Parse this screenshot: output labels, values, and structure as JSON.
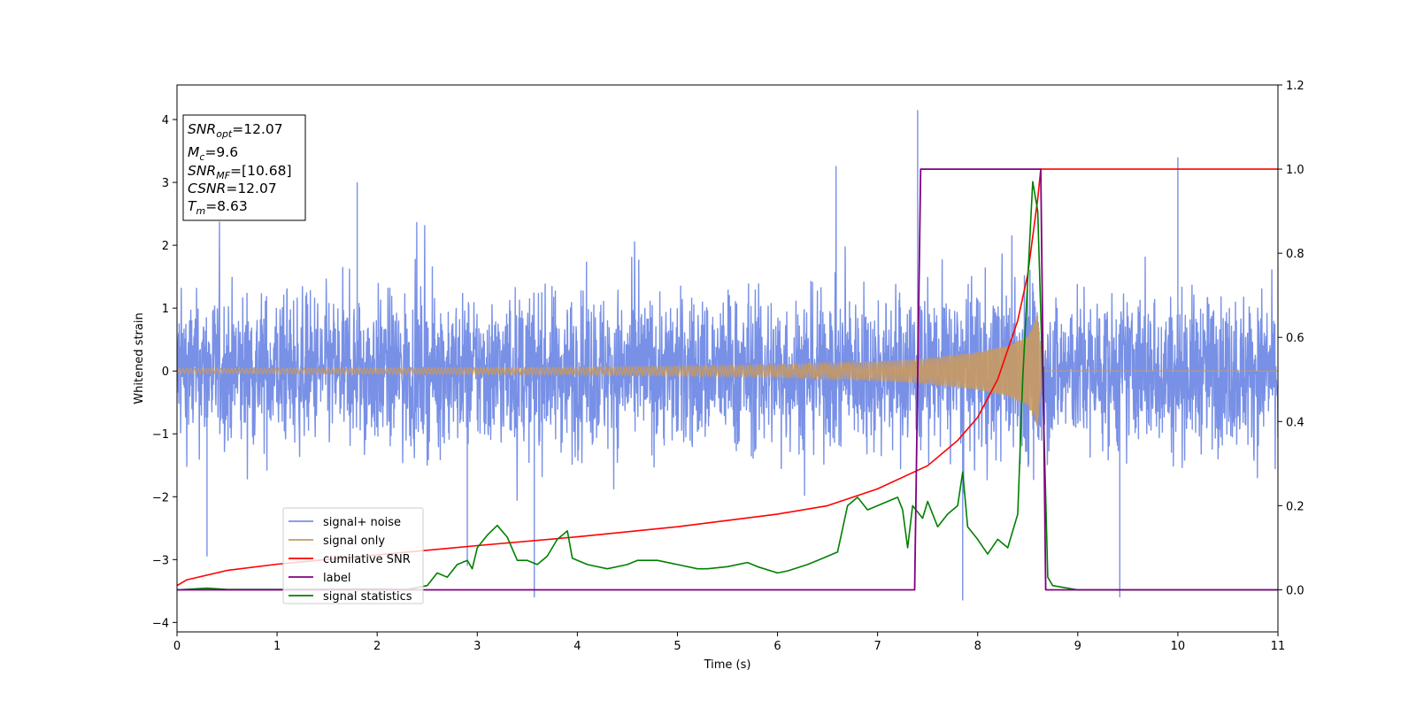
{
  "chart_data": {
    "type": "line",
    "xlabel": "Time (s)",
    "ylabel": "Whitened strain",
    "xlim": [
      0,
      11
    ],
    "ylim_left": [
      -4.15,
      4.55
    ],
    "ylim_right": [
      -0.1,
      1.2
    ],
    "x_ticks": [
      "0",
      "1",
      "2",
      "3",
      "4",
      "5",
      "6",
      "7",
      "8",
      "9",
      "10",
      "11"
    ],
    "y_left_ticks": [
      "−4",
      "−3",
      "−2",
      "−1",
      "0",
      "1",
      "2",
      "3",
      "4"
    ],
    "y_right_ticks": [
      "0.0",
      "0.2",
      "0.4",
      "0.6",
      "0.8",
      "1.0",
      "1.2"
    ],
    "colors": {
      "signal_noise": "#7890e6",
      "signal_only": "#c99a61",
      "cumulative_snr": "#ff0000",
      "label": "#800080",
      "signal_statistics": "#008000"
    },
    "annotation": {
      "snr_opt": "=12.07",
      "mc": "=9.6",
      "snr_mf": "=[10.68]",
      "csnr": "=12.07",
      "tm": "=8.63"
    },
    "series": [
      {
        "name": "signal+ noise",
        "axis": "left",
        "description": "noisy whitened strain, approx ±2.5 with spikes",
        "spikes": [
          [
            7.4,
            4.15
          ],
          [
            10.0,
            3.4
          ],
          [
            1.8,
            3.0
          ],
          [
            7.85,
            -3.65
          ],
          [
            3.57,
            -3.6
          ],
          [
            9.42,
            -3.6
          ],
          [
            2.9,
            -3.1
          ],
          [
            0.3,
            -2.95
          ]
        ]
      },
      {
        "name": "signal only",
        "axis": "left",
        "description": "chirp waveform growing toward merger at ~8.63 s, zero after",
        "envelope": [
          [
            0.0,
            0.04
          ],
          [
            2.0,
            0.05
          ],
          [
            4.0,
            0.06
          ],
          [
            6.0,
            0.1
          ],
          [
            7.0,
            0.15
          ],
          [
            7.5,
            0.2
          ],
          [
            8.0,
            0.3
          ],
          [
            8.3,
            0.4
          ],
          [
            8.5,
            0.55
          ],
          [
            8.6,
            0.9
          ],
          [
            8.65,
            0.0
          ],
          [
            11.0,
            0.0
          ]
        ]
      },
      {
        "name": "cumilative SNR",
        "axis": "right",
        "points": [
          [
            0.0,
            0.01
          ],
          [
            0.1,
            0.024
          ],
          [
            0.5,
            0.046
          ],
          [
            1.0,
            0.061
          ],
          [
            2.0,
            0.083
          ],
          [
            3.0,
            0.105
          ],
          [
            4.0,
            0.126
          ],
          [
            5.0,
            0.15
          ],
          [
            6.0,
            0.18
          ],
          [
            6.5,
            0.2
          ],
          [
            7.0,
            0.24
          ],
          [
            7.5,
            0.295
          ],
          [
            7.8,
            0.355
          ],
          [
            8.0,
            0.41
          ],
          [
            8.2,
            0.5
          ],
          [
            8.4,
            0.64
          ],
          [
            8.5,
            0.75
          ],
          [
            8.6,
            0.93
          ],
          [
            8.63,
            1.0
          ],
          [
            11.0,
            1.0
          ]
        ]
      },
      {
        "name": "label",
        "axis": "right",
        "points": [
          [
            0.0,
            0.0
          ],
          [
            7.37,
            0.0
          ],
          [
            7.43,
            1.0
          ],
          [
            8.63,
            1.0
          ],
          [
            8.68,
            0.0
          ],
          [
            11.0,
            0.0
          ]
        ]
      },
      {
        "name": "signal statistics",
        "axis": "right",
        "points": [
          [
            0.0,
            0.0
          ],
          [
            0.3,
            0.004
          ],
          [
            0.5,
            0.001
          ],
          [
            1.0,
            0.001
          ],
          [
            2.0,
            0.002
          ],
          [
            2.3,
            0.001
          ],
          [
            2.5,
            0.01
          ],
          [
            2.6,
            0.04
          ],
          [
            2.7,
            0.03
          ],
          [
            2.8,
            0.06
          ],
          [
            2.9,
            0.07
          ],
          [
            2.95,
            0.05
          ],
          [
            3.0,
            0.1
          ],
          [
            3.1,
            0.13
          ],
          [
            3.2,
            0.153
          ],
          [
            3.3,
            0.125
          ],
          [
            3.4,
            0.07
          ],
          [
            3.5,
            0.07
          ],
          [
            3.6,
            0.06
          ],
          [
            3.7,
            0.08
          ],
          [
            3.8,
            0.12
          ],
          [
            3.9,
            0.14
          ],
          [
            3.95,
            0.075
          ],
          [
            4.1,
            0.06
          ],
          [
            4.3,
            0.05
          ],
          [
            4.5,
            0.06
          ],
          [
            4.6,
            0.07
          ],
          [
            4.8,
            0.07
          ],
          [
            5.0,
            0.06
          ],
          [
            5.2,
            0.05
          ],
          [
            5.3,
            0.05
          ],
          [
            5.5,
            0.055
          ],
          [
            5.7,
            0.065
          ],
          [
            5.8,
            0.055
          ],
          [
            6.0,
            0.04
          ],
          [
            6.1,
            0.045
          ],
          [
            6.3,
            0.06
          ],
          [
            6.4,
            0.07
          ],
          [
            6.6,
            0.09
          ],
          [
            6.7,
            0.2
          ],
          [
            6.8,
            0.22
          ],
          [
            6.9,
            0.19
          ],
          [
            7.0,
            0.2
          ],
          [
            7.1,
            0.21
          ],
          [
            7.2,
            0.22
          ],
          [
            7.25,
            0.19
          ],
          [
            7.3,
            0.1
          ],
          [
            7.35,
            0.2
          ],
          [
            7.45,
            0.17
          ],
          [
            7.5,
            0.21
          ],
          [
            7.6,
            0.15
          ],
          [
            7.7,
            0.18
          ],
          [
            7.8,
            0.2
          ],
          [
            7.85,
            0.28
          ],
          [
            7.9,
            0.15
          ],
          [
            8.0,
            0.12
          ],
          [
            8.1,
            0.085
          ],
          [
            8.2,
            0.12
          ],
          [
            8.3,
            0.1
          ],
          [
            8.4,
            0.18
          ],
          [
            8.45,
            0.5
          ],
          [
            8.55,
            0.97
          ],
          [
            8.6,
            0.9
          ],
          [
            8.65,
            0.5
          ],
          [
            8.7,
            0.03
          ],
          [
            8.75,
            0.01
          ],
          [
            9.0,
            0.0
          ],
          [
            11.0,
            0.0
          ]
        ]
      }
    ],
    "legend": {
      "placement": "lower-left",
      "entries": [
        "signal+ noise",
        "signal only",
        "cumilative SNR",
        "label",
        "signal statistics"
      ]
    }
  }
}
